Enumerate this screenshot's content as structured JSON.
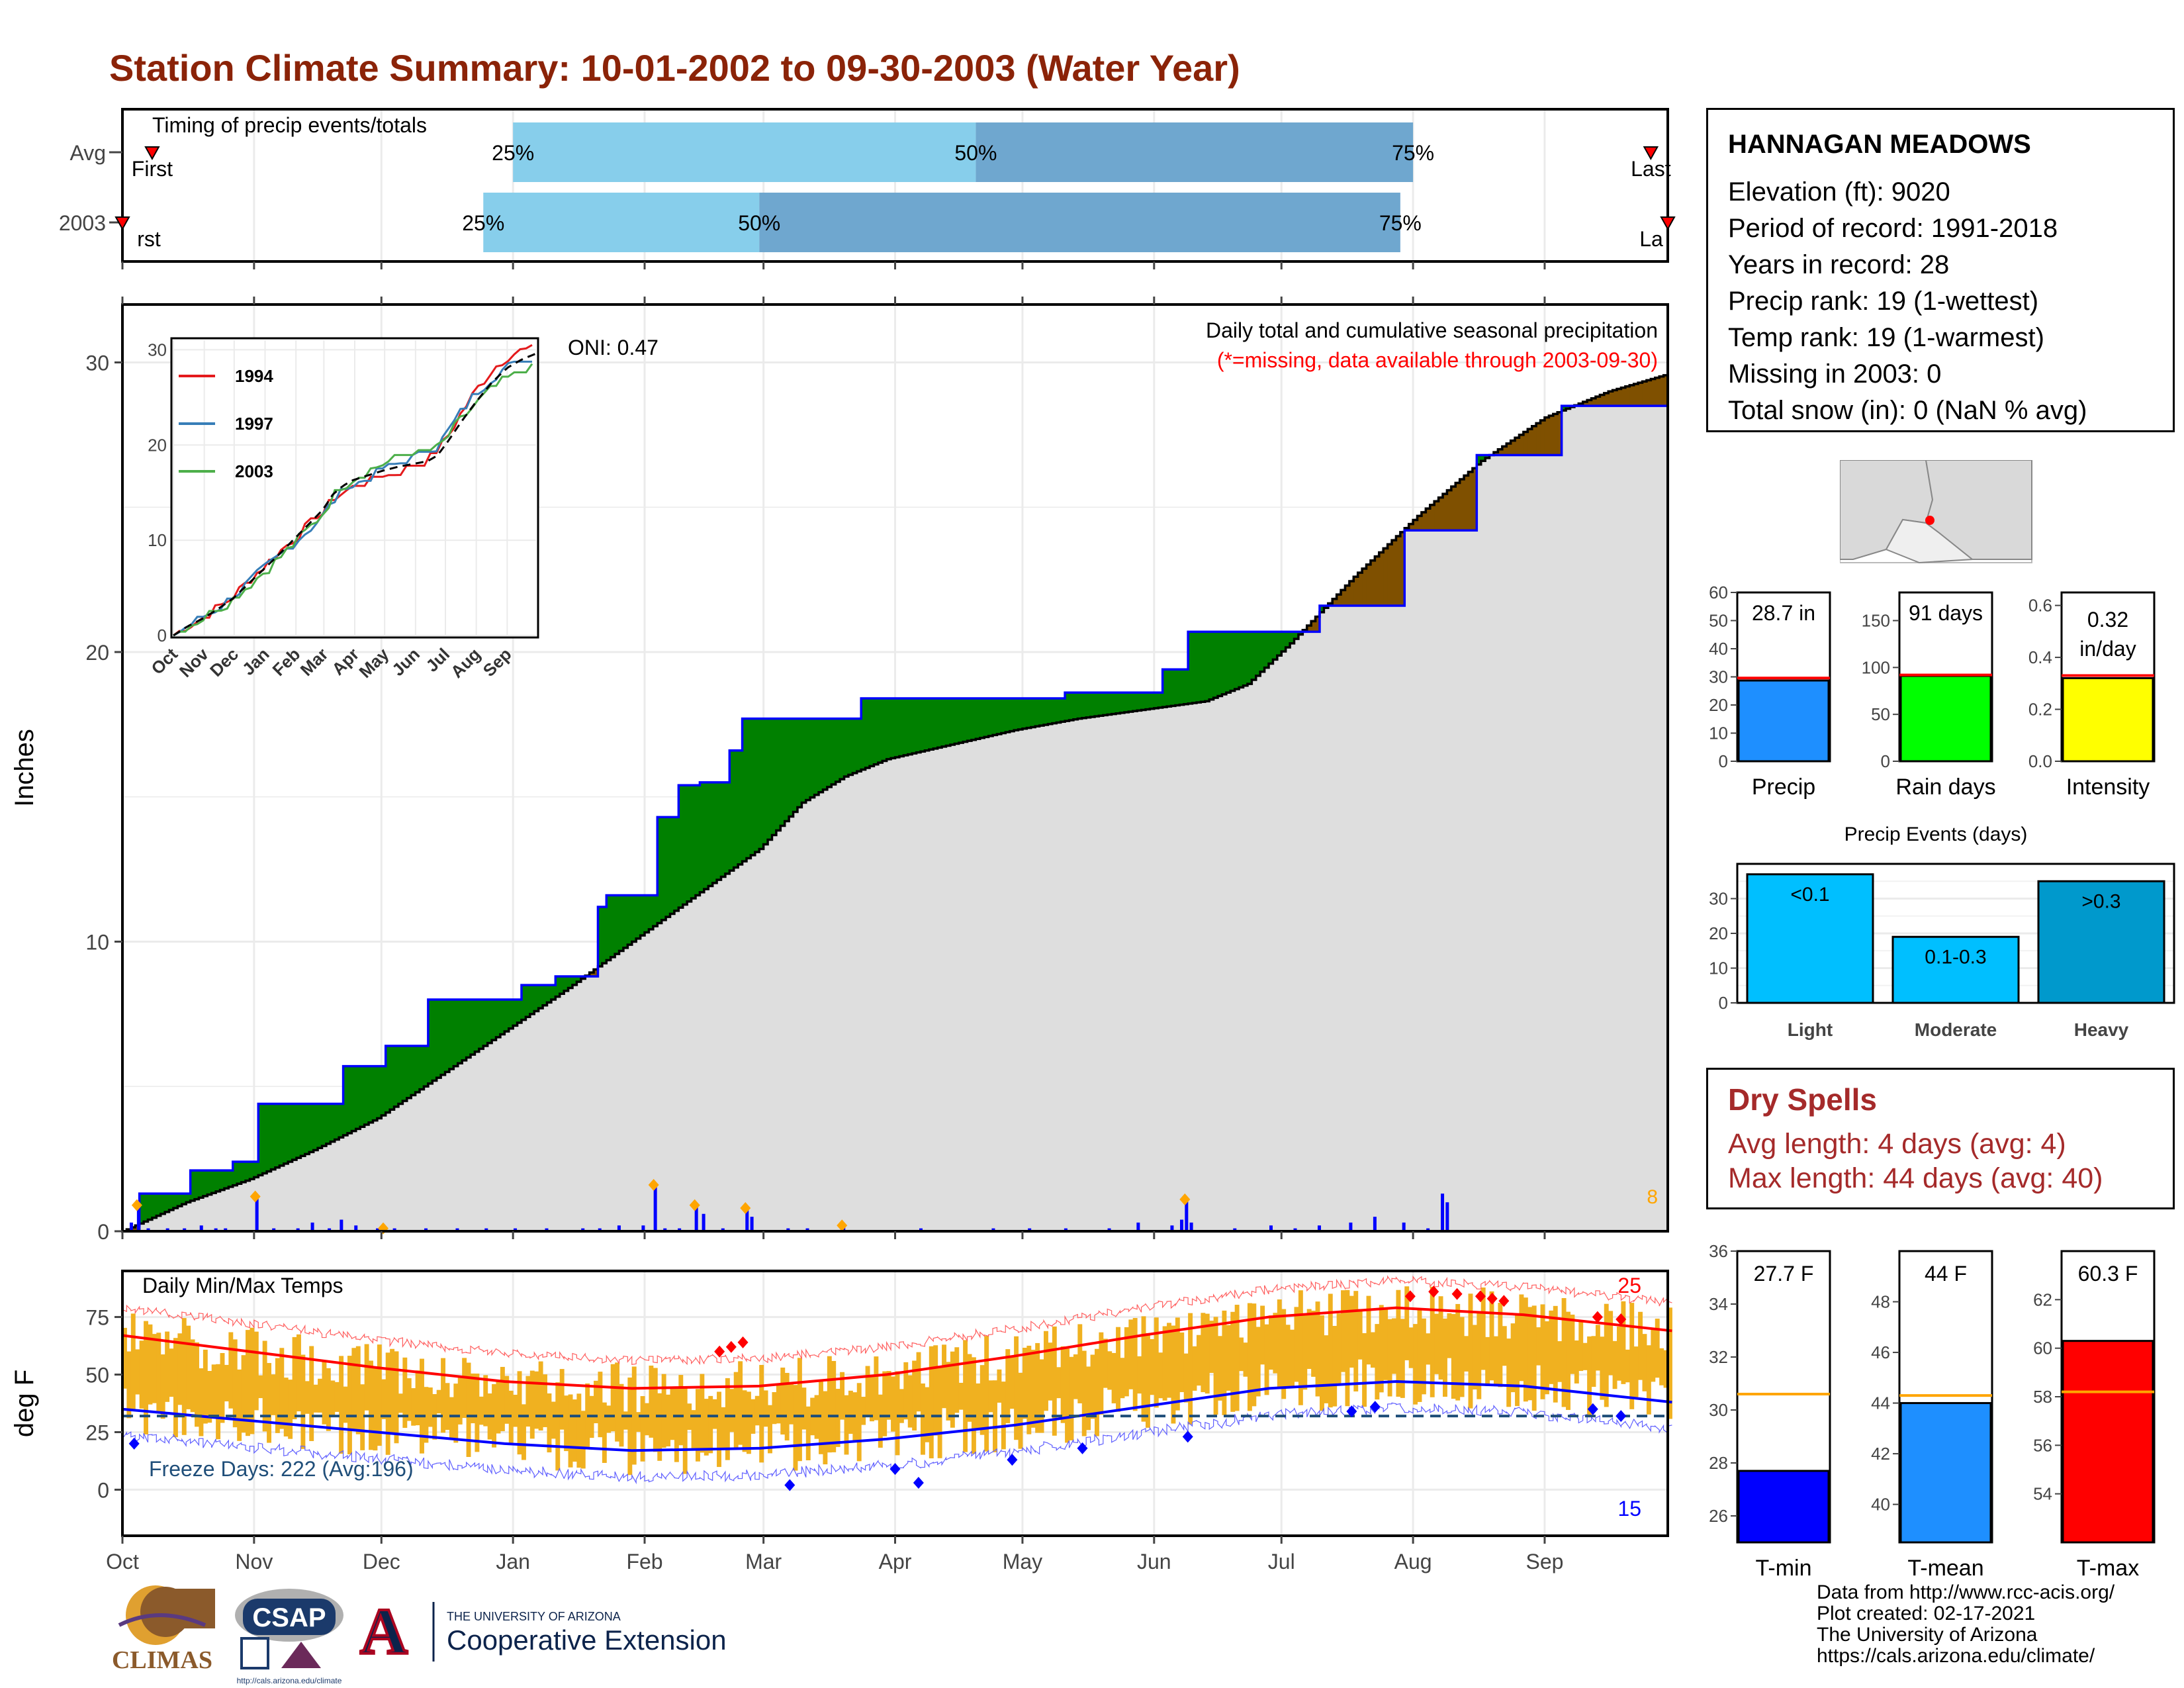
{
  "title": "Station Climate Summary: 10-01-2002 to 09-30-2003 (Water Year)",
  "colors": {
    "title": "#8b2308",
    "wet": "#008000",
    "dry": "#7f5000",
    "cum_line": "#0000ff",
    "bars": "#0000ff",
    "tmax": "#ff0000",
    "tmin": "#0000ff",
    "band": "#f0b120",
    "dry_spell": "#a52a2a"
  },
  "station": {
    "name": "HANNAGAN MEADOWS",
    "lines": [
      "Elevation (ft): 9020",
      "Period of record: 1991-2018",
      "Years in record: 28",
      "Precip rank: 19 (1-wettest)",
      "Temp rank: 19 (1-warmest)",
      "Missing in 2003: 0",
      "Total snow (in): 0 (NaN % avg)"
    ]
  },
  "dry_spells": {
    "title": "Dry Spells",
    "avg": "Avg length: 4 days (avg: 4)",
    "max": "Max length: 44 days (avg: 40)"
  },
  "footer": [
    "Data from http://www.rcc-acis.org/",
    "Plot created: 02-17-2021",
    "The University of Arizona",
    "https://cals.arizona.edu/climate/"
  ],
  "logos": {
    "climas": "CLIMAS",
    "csap": "CSAP",
    "csap_url": "http://cals.arizona.edu/climate",
    "ua_small": "THE UNIVERSITY OF ARIZONA",
    "ua_big": "Cooperative Extension"
  },
  "chart_data": [
    {
      "type": "bar",
      "title": "Timing of precip events/totals",
      "categories": [
        "Avg",
        "2003"
      ],
      "series": [
        {
          "name": "Avg",
          "first": "Oct 08",
          "q25": "Jan 01",
          "q50": "Apr 20",
          "q75": "Aug 01",
          "last": "Sep 26"
        },
        {
          "name": "2003",
          "first": "Oct 01",
          "q25": "Dec 25",
          "q50": "Feb 28",
          "q75": "Jul 29",
          "last": "Sep 30"
        }
      ],
      "labels": {
        "first": "First",
        "last": "Last",
        "q25": "25%",
        "q50": "50%",
        "q75": "75%"
      }
    },
    {
      "type": "area",
      "title": "Daily total and cumulative seasonal precipitation",
      "subtitle": "(*=missing, data available through 2003-09-30)",
      "annotation": "ONI: 0.47",
      "ylabel": "Inches",
      "ylim": [
        0,
        32
      ],
      "yticks": [
        0,
        10,
        20,
        30
      ],
      "x_months": [
        "Oct",
        "Nov",
        "Dec",
        "Jan",
        "Feb",
        "Mar",
        "Apr",
        "May",
        "Jun",
        "Jul",
        "Aug",
        "Sep"
      ],
      "extreme_count": "8",
      "avg_cumulative": [
        [
          0,
          0
        ],
        [
          15,
          1
        ],
        [
          30,
          1.8
        ],
        [
          45,
          2.8
        ],
        [
          60,
          3.9
        ],
        [
          75,
          5.4
        ],
        [
          90,
          6.9
        ],
        [
          105,
          8.4
        ],
        [
          120,
          10.0
        ],
        [
          135,
          11.6
        ],
        [
          150,
          13.2
        ],
        [
          160,
          14.8
        ],
        [
          170,
          15.7
        ],
        [
          180,
          16.3
        ],
        [
          195,
          16.8
        ],
        [
          210,
          17.3
        ],
        [
          225,
          17.7
        ],
        [
          240,
          18.0
        ],
        [
          255,
          18.3
        ],
        [
          265,
          18.9
        ],
        [
          275,
          20.3
        ],
        [
          290,
          22.6
        ],
        [
          305,
          24.7
        ],
        [
          320,
          26.6
        ],
        [
          335,
          28.1
        ],
        [
          350,
          29.0
        ],
        [
          364,
          29.6
        ]
      ],
      "year_cumulative": [
        [
          0,
          0
        ],
        [
          7,
          1.3
        ],
        [
          18,
          1.3
        ],
        [
          27,
          2.1
        ],
        [
          44,
          2.4
        ],
        [
          55,
          4.4
        ],
        [
          78,
          4.4
        ],
        [
          90,
          5.7
        ],
        [
          108,
          6.4
        ],
        [
          125,
          8.0
        ],
        [
          150,
          8.0
        ],
        [
          165,
          8.5
        ],
        [
          178,
          8.8
        ],
        [
          196,
          11.2
        ],
        [
          200,
          11.6
        ],
        [
          220,
          12.1
        ],
        [
          221,
          14.3
        ],
        [
          230,
          15.4
        ],
        [
          238,
          15.5
        ],
        [
          250,
          16.6
        ],
        [
          256,
          17.7
        ],
        [
          280,
          17.7
        ],
        [
          305,
          18.4
        ],
        [
          360,
          18.4
        ],
        [
          390,
          18.6
        ],
        [
          400,
          18.6
        ],
        [
          423,
          18.6
        ],
        [
          430,
          19.4
        ],
        [
          440,
          20.7
        ],
        [
          495,
          21.6
        ],
        [
          530,
          24.2
        ],
        [
          560,
          26.8
        ],
        [
          595,
          28.5
        ],
        [
          640,
          28.5
        ]
      ],
      "daily_precip": [
        [
          3,
          0.3
        ],
        [
          6,
          0.9
        ],
        [
          10,
          0.1
        ],
        [
          18,
          0.1
        ],
        [
          25,
          0.1
        ],
        [
          32,
          0.2
        ],
        [
          38,
          0.1
        ],
        [
          42,
          0.1
        ],
        [
          55,
          1.2
        ],
        [
          62,
          0.1
        ],
        [
          72,
          0.1
        ],
        [
          78,
          0.3
        ],
        [
          85,
          0.1
        ],
        [
          90,
          0.4
        ],
        [
          96,
          0.2
        ],
        [
          105,
          0.1
        ],
        [
          112,
          0.1
        ],
        [
          125,
          0.1
        ],
        [
          138,
          0.1
        ],
        [
          150,
          0.1
        ],
        [
          162,
          0.1
        ],
        [
          175,
          0.1
        ],
        [
          190,
          0.1
        ],
        [
          197,
          0.1
        ],
        [
          205,
          0.2
        ],
        [
          215,
          0.2
        ],
        [
          220,
          1.6
        ],
        [
          224,
          0.1
        ],
        [
          230,
          0.1
        ],
        [
          237,
          0.9
        ],
        [
          240,
          0.6
        ],
        [
          248,
          0.1
        ],
        [
          258,
          0.8
        ],
        [
          260,
          0.5
        ],
        [
          275,
          0.1
        ],
        [
          283,
          0.1
        ],
        [
          298,
          0.2
        ],
        [
          330,
          0.1
        ],
        [
          360,
          0.1
        ],
        [
          375,
          0.1
        ],
        [
          390,
          0.1
        ],
        [
          408,
          0.1
        ],
        [
          420,
          0.3
        ],
        [
          434,
          0.2
        ],
        [
          438,
          0.4
        ],
        [
          440,
          1.1
        ],
        [
          442,
          0.3
        ],
        [
          460,
          0.1
        ],
        [
          475,
          0.2
        ],
        [
          485,
          0.1
        ],
        [
          495,
          0.2
        ],
        [
          508,
          0.3
        ],
        [
          518,
          0.5
        ],
        [
          530,
          0.3
        ],
        [
          540,
          0.1
        ],
        [
          546,
          1.3
        ],
        [
          548,
          1.0
        ]
      ],
      "inset": {
        "series": [
          {
            "name": "1994",
            "color": "#e41a1c"
          },
          {
            "name": "1997",
            "color": "#377eb8"
          },
          {
            "name": "2003",
            "color": "#4daf4a"
          }
        ],
        "yticks": [
          0,
          10,
          20,
          30
        ],
        "x_months": [
          "Oct",
          "Nov",
          "Dec",
          "Jan",
          "Feb",
          "Mar",
          "Apr",
          "May",
          "Jun",
          "Jul",
          "Aug",
          "Sep"
        ]
      }
    },
    {
      "type": "bar",
      "title": "Precip / Rain days / Intensity",
      "panels": [
        {
          "name": "Precip",
          "label": "28.7 in",
          "value": 28.7,
          "avg": 29.6,
          "ylim": [
            0,
            60
          ],
          "yticks": [
            0,
            10,
            20,
            30,
            40,
            50,
            60
          ],
          "color": "#1e8fff"
        },
        {
          "name": "Rain days",
          "label": "91 days",
          "value": 91,
          "avg": 92,
          "ylim": [
            0,
            180
          ],
          "yticks": [
            0,
            50,
            100,
            150
          ],
          "color": "#00ff00"
        },
        {
          "name": "Intensity",
          "label": "0.32 in/day",
          "value": 0.32,
          "avg": 0.33,
          "ylim": [
            0,
            0.65
          ],
          "yticks": [
            0.0,
            0.2,
            0.4,
            0.6
          ],
          "color": "#ffff00"
        }
      ]
    },
    {
      "type": "bar",
      "title": "Precip Events (days)",
      "categories": [
        "Light",
        "Moderate",
        "Heavy"
      ],
      "bar_labels": [
        "<0.1",
        "0.1-0.3",
        ">0.3"
      ],
      "values": [
        37,
        19,
        35
      ],
      "ylim": [
        0,
        40
      ],
      "yticks": [
        0,
        10,
        20,
        30
      ]
    },
    {
      "type": "line",
      "title": "Daily Min/Max Temps",
      "ylabel": "deg F",
      "ylim": [
        -20,
        95
      ],
      "yticks": [
        0,
        25,
        50,
        75
      ],
      "x_months": [
        "Oct",
        "Nov",
        "Dec",
        "Jan",
        "Feb",
        "Mar",
        "Apr",
        "May",
        "Jun",
        "Jul",
        "Aug",
        "Sep"
      ],
      "freeze_label": "Freeze Days: 222 (Avg:196)",
      "record_high_count": "25",
      "record_low_count": "15",
      "avg_tmax": [
        [
          0,
          67
        ],
        [
          30,
          60
        ],
        [
          60,
          53
        ],
        [
          90,
          47
        ],
        [
          120,
          44
        ],
        [
          150,
          45
        ],
        [
          180,
          50
        ],
        [
          210,
          58
        ],
        [
          240,
          67
        ],
        [
          270,
          75
        ],
        [
          300,
          79
        ],
        [
          330,
          76
        ],
        [
          365,
          69
        ]
      ],
      "avg_tmin": [
        [
          0,
          35
        ],
        [
          30,
          30
        ],
        [
          60,
          25
        ],
        [
          90,
          20
        ],
        [
          120,
          17
        ],
        [
          150,
          18
        ],
        [
          180,
          22
        ],
        [
          210,
          28
        ],
        [
          240,
          36
        ],
        [
          270,
          44
        ],
        [
          300,
          47
        ],
        [
          330,
          45
        ],
        [
          365,
          38
        ]
      ]
    },
    {
      "type": "bar",
      "title": "Temperature summary",
      "panels": [
        {
          "name": "T-min",
          "label": "27.7 F",
          "value": 27.7,
          "avg": 30.6,
          "ylim": [
            25,
            36
          ],
          "yticks": [
            26,
            28,
            30,
            32,
            34,
            36
          ],
          "color": "#0000ff"
        },
        {
          "name": "T-mean",
          "label": "44 F",
          "value": 44.0,
          "avg": 44.3,
          "ylim": [
            38.5,
            50
          ],
          "yticks": [
            40,
            42,
            44,
            46,
            48
          ],
          "color": "#1e8fff"
        },
        {
          "name": "T-max",
          "label": "60.3 F",
          "value": 60.3,
          "avg": 58.2,
          "ylim": [
            52,
            64
          ],
          "yticks": [
            54,
            56,
            58,
            60,
            62
          ],
          "color": "#ff0000"
        }
      ]
    }
  ]
}
